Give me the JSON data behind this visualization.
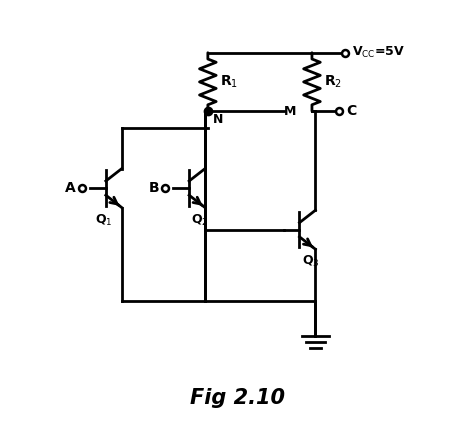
{
  "title": "Fig 2.10",
  "title_fontsize": 15,
  "title_fontweight": "bold",
  "bg_color": "#ffffff",
  "line_color": "#000000",
  "lw": 2.0,
  "figsize": [
    4.74,
    4.22
  ],
  "dpi": 100,
  "xlim": [
    0,
    10
  ],
  "ylim": [
    0,
    10
  ]
}
